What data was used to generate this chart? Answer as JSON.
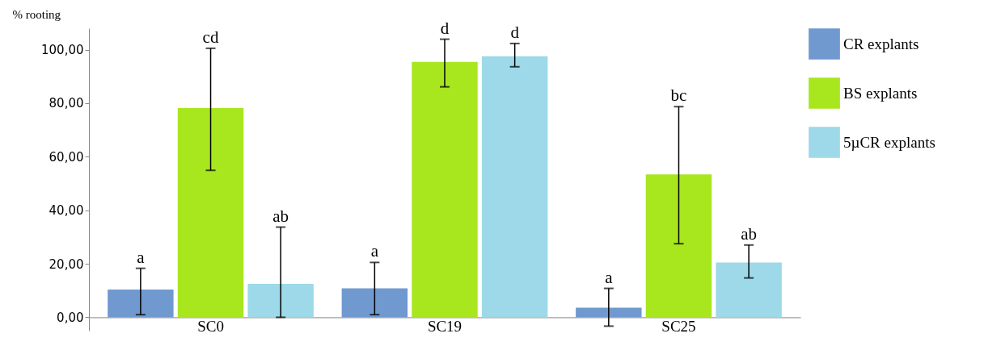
{
  "chart_data": {
    "type": "bar",
    "ylabel": "% rooting",
    "categories": [
      "SC0",
      "SC19",
      "SC25"
    ],
    "series": [
      {
        "name": "CR explants",
        "color": "#7099d0",
        "values": [
          10.4,
          10.8,
          3.6
        ],
        "errors": [
          [
            1.0,
            18.3
          ],
          [
            1.0,
            20.5
          ],
          [
            -3.3,
            10.8
          ]
        ]
      },
      {
        "name": "BS explants",
        "color": "#a8e61e",
        "values": [
          78.2,
          95.4,
          53.4
        ],
        "errors": [
          [
            54.9,
            100.5
          ],
          [
            86.1,
            103.9
          ],
          [
            27.5,
            78.7
          ]
        ]
      },
      {
        "name": "5µCR explants",
        "color": "#9dd9e8",
        "values": [
          12.5,
          97.5,
          20.5
        ],
        "errors": [
          [
            0,
            33.7
          ],
          [
            93.6,
            102.3
          ],
          [
            14.7,
            27.0
          ]
        ]
      }
    ],
    "annotations": [
      "a",
      "cd",
      "ab",
      "a",
      "d",
      "d",
      "a",
      "bc",
      "ab"
    ],
    "ylim": [
      -5,
      108
    ],
    "yticks": [
      {
        "value": 0,
        "label": "0,00"
      },
      {
        "value": 20,
        "label": "20,00"
      },
      {
        "value": 40,
        "label": "40,00"
      },
      {
        "value": 60,
        "label": "60,00"
      },
      {
        "value": 80,
        "label": "80,00"
      },
      {
        "value": 100,
        "label": "100,00"
      }
    ],
    "legend": "right"
  }
}
